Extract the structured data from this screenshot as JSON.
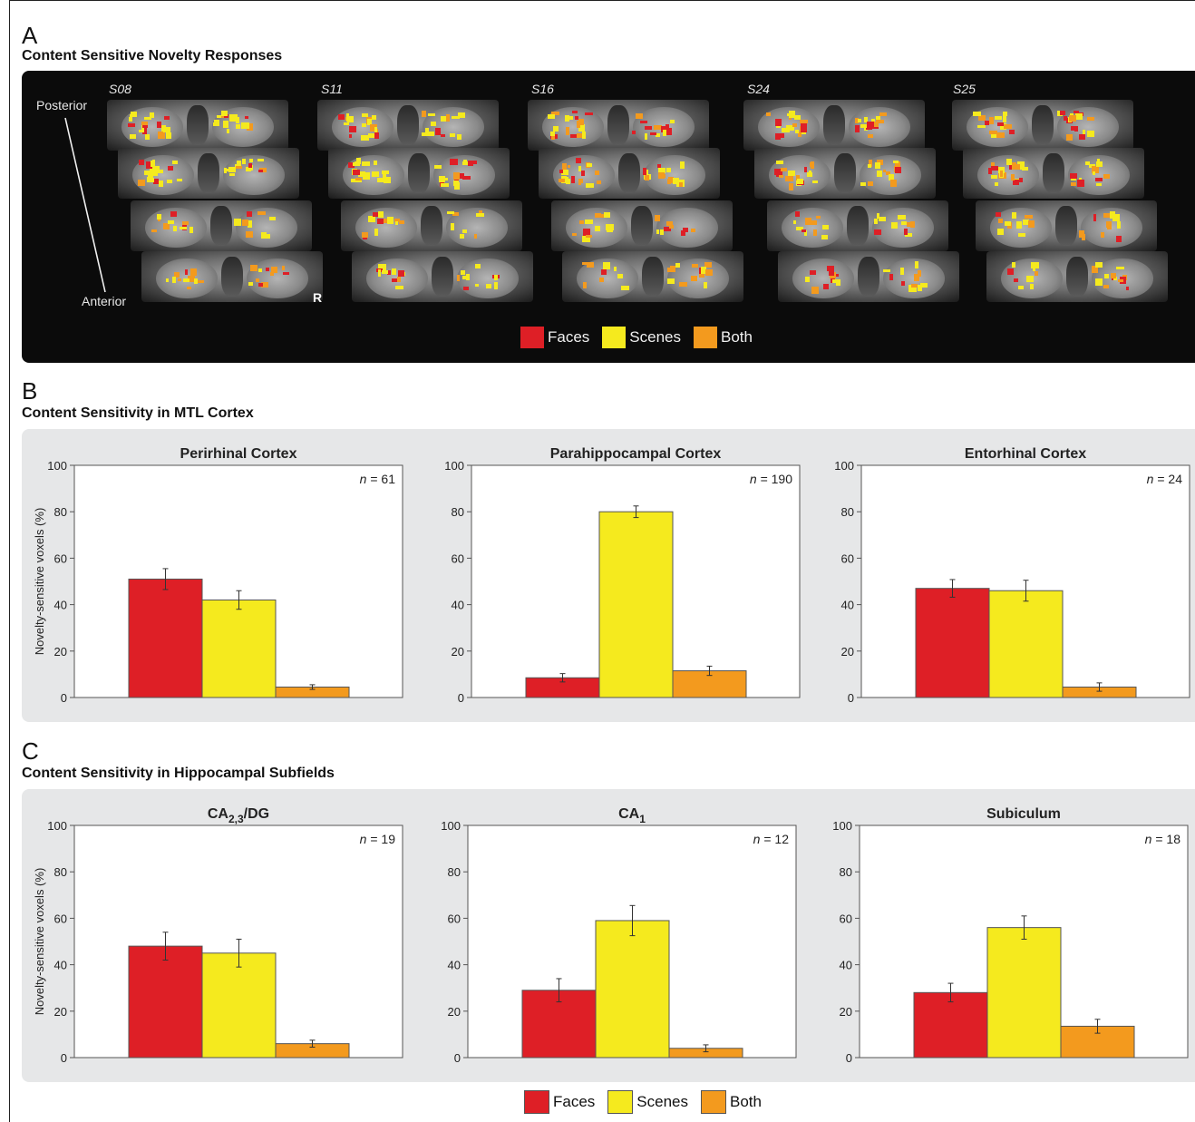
{
  "panel_a": {
    "letter": "A",
    "title": "Content Sensitive Novelty Responses",
    "subjects": [
      "S08",
      "S11",
      "S16",
      "S24",
      "S25"
    ],
    "posterior_label": "Posterior",
    "anterior_label": "Anterior",
    "side_label": "R",
    "legend": [
      "Faces",
      "Scenes",
      "Both"
    ]
  },
  "panel_b": {
    "letter": "B",
    "title": "Content Sensitivity in MTL Cortex"
  },
  "panel_c": {
    "letter": "C",
    "title": "Content Sensitivity in Hippocampal Subfields"
  },
  "legend_bottom": [
    "Faces",
    "Scenes",
    "Both"
  ],
  "colors": {
    "faces": "#de1f26",
    "scenes": "#f5ea1e",
    "both": "#f39a1e"
  },
  "chart_data": [
    {
      "type": "bar",
      "title": "Perirhinal Cortex",
      "n_label": "n = 61",
      "categories": [
        "Faces",
        "Scenes",
        "Both"
      ],
      "values": [
        51,
        42,
        4.5
      ],
      "errors": [
        4.5,
        4,
        1
      ],
      "ylabel": "Novelty-sensitive voxels (%)",
      "ylim": [
        0,
        100
      ],
      "yticks": [
        0,
        20,
        40,
        60,
        80,
        100
      ]
    },
    {
      "type": "bar",
      "title": "Parahippocampal Cortex",
      "n_label": "n = 190",
      "categories": [
        "Faces",
        "Scenes",
        "Both"
      ],
      "values": [
        8.5,
        80,
        11.5
      ],
      "errors": [
        1.8,
        2.5,
        2
      ],
      "ylabel": "",
      "ylim": [
        0,
        100
      ],
      "yticks": [
        0,
        20,
        40,
        60,
        80,
        100
      ]
    },
    {
      "type": "bar",
      "title": "Entorhinal Cortex",
      "n_label": "n = 24",
      "categories": [
        "Faces",
        "Scenes",
        "Both"
      ],
      "values": [
        47,
        46,
        4.5
      ],
      "errors": [
        3.8,
        4.5,
        1.8
      ],
      "ylabel": "",
      "ylim": [
        0,
        100
      ],
      "yticks": [
        0,
        20,
        40,
        60,
        80,
        100
      ]
    },
    {
      "type": "bar",
      "title": "CA2,3/DG",
      "n_label": "n = 19",
      "categories": [
        "Faces",
        "Scenes",
        "Both"
      ],
      "values": [
        48,
        45,
        6
      ],
      "errors": [
        6,
        6,
        1.5
      ],
      "ylabel": "Novelty-sensitive voxels (%)",
      "ylim": [
        0,
        100
      ],
      "yticks": [
        0,
        20,
        40,
        60,
        80,
        100
      ]
    },
    {
      "type": "bar",
      "title": "CA1",
      "n_label": "n = 12",
      "categories": [
        "Faces",
        "Scenes",
        "Both"
      ],
      "values": [
        29,
        59,
        4
      ],
      "errors": [
        5,
        6.5,
        1.5
      ],
      "ylabel": "",
      "ylim": [
        0,
        100
      ],
      "yticks": [
        0,
        20,
        40,
        60,
        80,
        100
      ]
    },
    {
      "type": "bar",
      "title": "Subiculum",
      "n_label": "n = 18",
      "categories": [
        "Faces",
        "Scenes",
        "Both"
      ],
      "values": [
        28,
        56,
        13.5
      ],
      "errors": [
        4,
        5,
        3
      ],
      "ylabel": "",
      "ylim": [
        0,
        100
      ],
      "yticks": [
        0,
        20,
        40,
        60,
        80,
        100
      ]
    }
  ]
}
